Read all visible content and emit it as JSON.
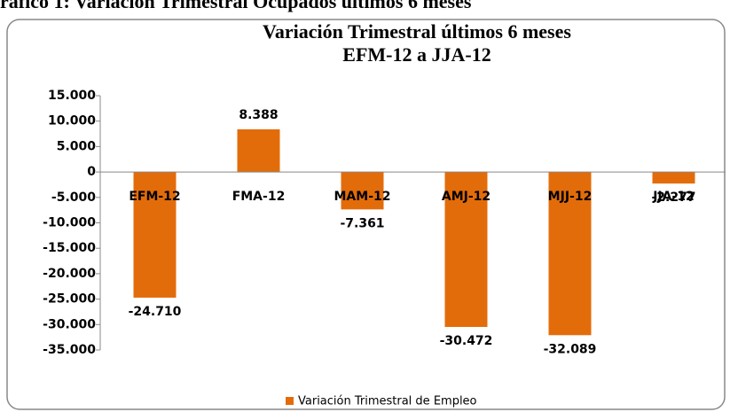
{
  "caption": "ráfico 1: Variación Trimestral Ocupados últimos 6 meses",
  "chart_data": {
    "type": "bar",
    "title": "Variación Trimestral últimos 6 meses",
    "subtitle": "EFM-12 a JJA-12",
    "categories": [
      "EFM-12",
      "FMA-12",
      "MAM-12",
      "AMJ-12",
      "MJJ-12",
      "JJA-12"
    ],
    "series": [
      {
        "name": "Variación Trimestral de Empleo",
        "color": "#e36c0a",
        "values": [
          -24710,
          8388,
          -7361,
          -30472,
          -32089,
          -2277
        ],
        "value_labels": [
          "-24.710",
          "8.388",
          "-7.361",
          "-30.472",
          "-32.089",
          "-2.277"
        ]
      }
    ],
    "ylim": [
      -35000,
      15000
    ],
    "yticks": [
      {
        "value": 15000,
        "label": "15.000"
      },
      {
        "value": 10000,
        "label": "10.000"
      },
      {
        "value": 5000,
        "label": "5.000"
      },
      0,
      {
        "value": -5000,
        "label": "-5.000"
      },
      {
        "value": -10000,
        "label": "-10.000"
      },
      {
        "value": -15000,
        "label": "-15.000"
      },
      {
        "value": -20000,
        "label": "-20.000"
      },
      {
        "value": -25000,
        "label": "-25.000"
      },
      {
        "value": -30000,
        "label": "-30.000"
      },
      {
        "value": -35000,
        "label": "-35.000"
      }
    ],
    "legend": "bottom"
  }
}
